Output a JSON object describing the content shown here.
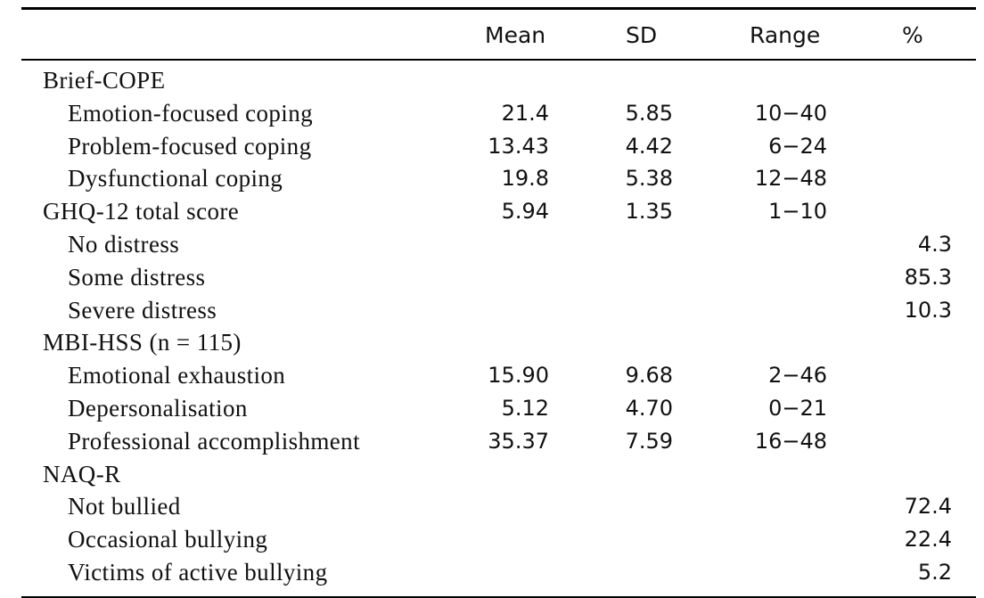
{
  "table": {
    "headers": {
      "label": "",
      "mean": "Mean",
      "sd": "SD",
      "range": "Range",
      "pct": "%"
    },
    "rows": [
      {
        "label": "Brief-COPE",
        "type": "section",
        "mean": "",
        "sd": "",
        "range": "",
        "pct": ""
      },
      {
        "label": "Emotion-focused coping",
        "type": "indent",
        "mean": "21.4",
        "sd": "5.85",
        "range": "10−40",
        "pct": ""
      },
      {
        "label": "Problem-focused coping",
        "type": "indent",
        "mean": "13.43",
        "sd": "4.42",
        "range": "6−24",
        "pct": ""
      },
      {
        "label": "Dysfunctional coping",
        "type": "indent",
        "mean": "19.8",
        "sd": "5.38",
        "range": "12−48",
        "pct": ""
      },
      {
        "label": "GHQ-12 total score",
        "type": "section",
        "mean": "5.94",
        "sd": "1.35",
        "range": "1−10",
        "pct": ""
      },
      {
        "label": "No distress",
        "type": "indent",
        "mean": "",
        "sd": "",
        "range": "",
        "pct": "4.3"
      },
      {
        "label": "Some distress",
        "type": "indent",
        "mean": "",
        "sd": "",
        "range": "",
        "pct": "85.3"
      },
      {
        "label": "Severe distress",
        "type": "indent",
        "mean": "",
        "sd": "",
        "range": "",
        "pct": "10.3"
      },
      {
        "label": "MBI-HSS (n = 115)",
        "type": "section",
        "mean": "",
        "sd": "",
        "range": "",
        "pct": ""
      },
      {
        "label": "Emotional exhaustion",
        "type": "indent",
        "mean": "15.90",
        "sd": "9.68",
        "range": "2−46",
        "pct": ""
      },
      {
        "label": "Depersonalisation",
        "type": "indent",
        "mean": "5.12",
        "sd": "4.70",
        "range": "0−21",
        "pct": ""
      },
      {
        "label": "Professional accomplishment",
        "type": "indent",
        "mean": "35.37",
        "sd": "7.59",
        "range": "16−48",
        "pct": ""
      },
      {
        "label": "NAQ-R",
        "type": "section",
        "mean": "",
        "sd": "",
        "range": "",
        "pct": ""
      },
      {
        "label": "Not bullied",
        "type": "indent",
        "mean": "",
        "sd": "",
        "range": "",
        "pct": "72.4"
      },
      {
        "label": "Occasional bullying",
        "type": "indent",
        "mean": "",
        "sd": "",
        "range": "",
        "pct": "22.4"
      },
      {
        "label": "Victims of active bullying",
        "type": "indent",
        "mean": "",
        "sd": "",
        "range": "",
        "pct": "5.2"
      }
    ]
  }
}
